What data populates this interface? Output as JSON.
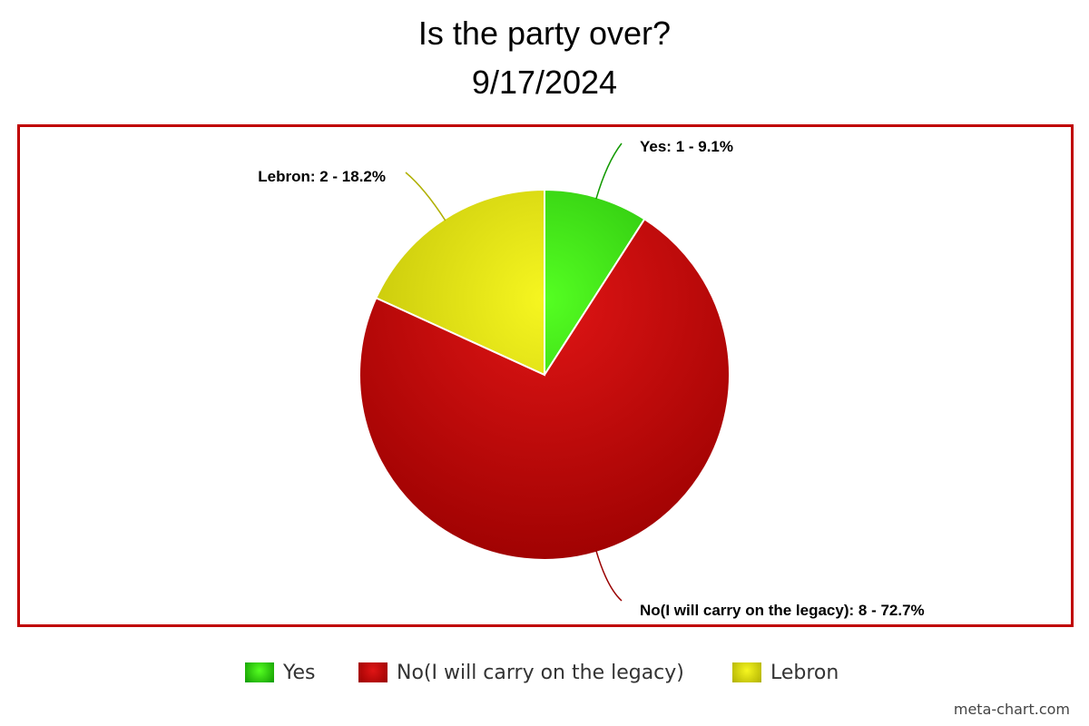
{
  "chart_data": {
    "type": "pie",
    "title": "Is the party over?",
    "subtitle": "9/17/2024",
    "slices": [
      {
        "name": "Yes",
        "value": 1,
        "percent": 9.1,
        "label": "Yes: 1 - 9.1%",
        "color": "#33dd11",
        "color_light": "#55ff22",
        "color_dark": "#119900"
      },
      {
        "name": "No(I will carry on the legacy)",
        "value": 8,
        "percent": 72.7,
        "label": "No(I will carry on the legacy): 8 - 72.7%",
        "color": "#cc0000",
        "color_light": "#e01515",
        "color_dark": "#990000"
      },
      {
        "name": "Lebron",
        "value": 2,
        "percent": 18.2,
        "label": "Lebron: 2 - 18.2%",
        "color": "#dddd00",
        "color_light": "#f6f620",
        "color_dark": "#b0b000"
      }
    ],
    "legend_position": "bottom-center",
    "frame_color": "#c00000"
  },
  "credit": "meta-chart.com"
}
